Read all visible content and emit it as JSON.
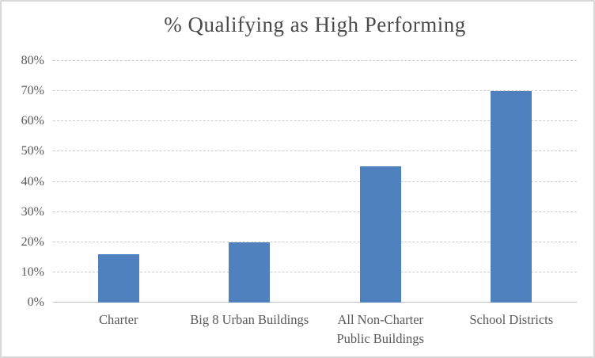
{
  "chart_data": {
    "type": "bar",
    "title": "% Qualifying as High Performing",
    "categories": [
      "Charter",
      "Big 8 Urban Buildings",
      "All Non-Charter Public Buildings",
      "School Districts"
    ],
    "values": [
      16,
      20,
      45,
      70
    ],
    "value_unit": "%",
    "xlabel": "",
    "ylabel": "",
    "ylim": [
      0,
      80
    ],
    "ytick_step": 10,
    "ytick_labels": [
      "0%",
      "10%",
      "20%",
      "30%",
      "40%",
      "50%",
      "60%",
      "70%",
      "80%"
    ],
    "grid": "horizontal-dashed",
    "legend_position": "none",
    "colors": {
      "bar": "#4e81bd",
      "gridline": "#cbcbcb",
      "axis_line": "#bfbfbf",
      "tick_text": "#595959",
      "title_text": "#4a4a4a",
      "border": "#d9d9d9",
      "background": "#ffffff"
    }
  }
}
